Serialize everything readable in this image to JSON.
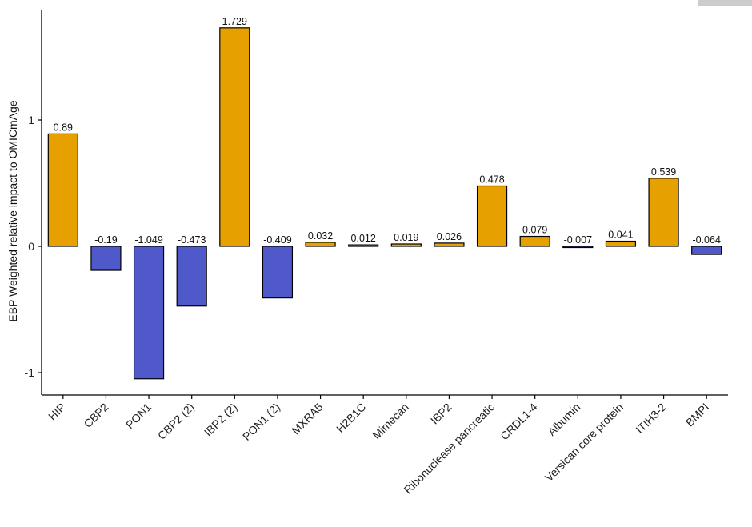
{
  "chart_data": {
    "type": "bar",
    "title": "",
    "xlabel": "",
    "ylabel": "EBP Weighted relative impact to OMICmAge",
    "ylim": [
      -1.2,
      1.85
    ],
    "yticks": [
      -1,
      0,
      1
    ],
    "ytick_labels": [
      "-1",
      "0",
      "1"
    ],
    "categories": [
      "HIP",
      "CBP2",
      "PON1",
      "CBP2 (2)",
      "IBP2 (2)",
      "PON1 (2)",
      "MXRA5",
      "H2B1C",
      "Mimecan",
      "IBP2",
      "Ribonuclease pancreatic",
      "CRDL1-4",
      "Albumin",
      "Versican core protein",
      "ITIH3-2",
      "BMPI"
    ],
    "values": [
      0.89,
      -0.19,
      -1.049,
      -0.473,
      1.729,
      -0.409,
      0.032,
      0.012,
      0.019,
      0.026,
      0.478,
      0.079,
      -0.007,
      0.041,
      0.539,
      -0.064
    ],
    "value_labels": [
      "0.89",
      "-0.19",
      "-1.049",
      "-0.473",
      "1.729",
      "-0.409",
      "0.032",
      "0.012",
      "0.019",
      "0.026",
      "0.478",
      "0.079",
      "-0.007",
      "0.041",
      "0.539",
      "-0.064"
    ],
    "colors": {
      "positive": "#E6A000",
      "negative": "#5059C9",
      "outline": "#000000"
    },
    "grid": false,
    "legend": "none"
  }
}
